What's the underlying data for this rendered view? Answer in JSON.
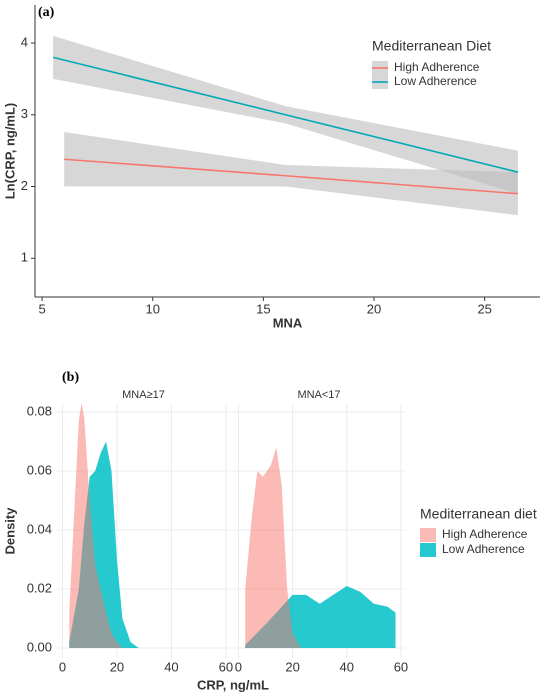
{
  "chart_data": [
    {
      "type": "line",
      "label": "(a)",
      "x_label": "MNA",
      "y_label": "Ln(CRP, ng/mL)",
      "xlim": [
        4.68,
        27.5
      ],
      "xticks": [
        5,
        10,
        15,
        20,
        25
      ],
      "ylim": [
        0.46,
        4.53
      ],
      "yticks": [
        1,
        2,
        3,
        4
      ],
      "legend_title": "Mediterranean Diet",
      "legend_position": "top-right",
      "band_color": "#bdbdbd",
      "series": [
        {
          "name": "High Adherence",
          "color": "#F8766D",
          "x": [
            6,
            16,
            26.5
          ],
          "values": [
            2.38,
            2.15,
            1.9
          ],
          "lower": [
            2.0,
            2.0,
            1.6
          ],
          "upper": [
            2.76,
            2.3,
            2.2
          ]
        },
        {
          "name": "Low Adherence",
          "color": "#00A9B5",
          "x": [
            5.5,
            16,
            26.5
          ],
          "values": [
            3.8,
            3.0,
            2.2
          ],
          "lower": [
            3.5,
            2.88,
            1.9
          ],
          "upper": [
            4.1,
            3.12,
            2.5
          ]
        }
      ]
    },
    {
      "type": "area",
      "label": "(b)",
      "x_label": "CRP, ng/mL",
      "y_label": "Density",
      "xlim": [
        -2,
        61.5
      ],
      "xticks": [
        0,
        20,
        40,
        60
      ],
      "ylim": [
        -0.0034,
        0.0827
      ],
      "yticks": [
        {
          "value": 0,
          "label": "0.00"
        },
        {
          "value": 0.02,
          "label": "0.02"
        },
        {
          "value": 0.04,
          "label": "0.04"
        },
        {
          "value": 0.06,
          "label": "0.06"
        },
        {
          "value": 0.08,
          "label": "0.08"
        }
      ],
      "grid": true,
      "legend_title": "Mediterranean diet",
      "legend_position": "right",
      "panels": [
        {
          "title": "MNA≥17",
          "series": [
            {
              "name": "High Adherence",
              "color": "#F8766D",
              "x": [
                2.5,
                4,
                6,
                7,
                8,
                10,
                12,
                14,
                16,
                18,
                20,
                22
              ],
              "values": [
                0.012,
                0.04,
                0.077,
                0.083,
                0.078,
                0.05,
                0.028,
                0.02,
                0.012,
                0.005,
                0.002,
                0
              ]
            },
            {
              "name": "Low Adherence",
              "color": "#00BFC4",
              "x": [
                2.5,
                6,
                8,
                10,
                12,
                14,
                16,
                18,
                20,
                22,
                25,
                28
              ],
              "values": [
                0.002,
                0.02,
                0.042,
                0.058,
                0.06,
                0.066,
                0.07,
                0.06,
                0.03,
                0.01,
                0.002,
                0
              ]
            }
          ]
        },
        {
          "title": "MNA<17",
          "series": [
            {
              "name": "High Adherence",
              "color": "#F8766D",
              "x": [
                2.5,
                5,
                7,
                9,
                12,
                14,
                16,
                18,
                20,
                23
              ],
              "values": [
                0.02,
                0.045,
                0.06,
                0.058,
                0.062,
                0.068,
                0.055,
                0.02,
                0.005,
                0
              ]
            },
            {
              "name": "Low Adherence",
              "color": "#00BFC4",
              "x": [
                2.5,
                10,
                15,
                20,
                25,
                30,
                35,
                40,
                45,
                50,
                55,
                58
              ],
              "values": [
                0.001,
                0.008,
                0.013,
                0.018,
                0.018,
                0.015,
                0.018,
                0.021,
                0.019,
                0.015,
                0.014,
                0.012
              ]
            }
          ]
        }
      ]
    }
  ]
}
